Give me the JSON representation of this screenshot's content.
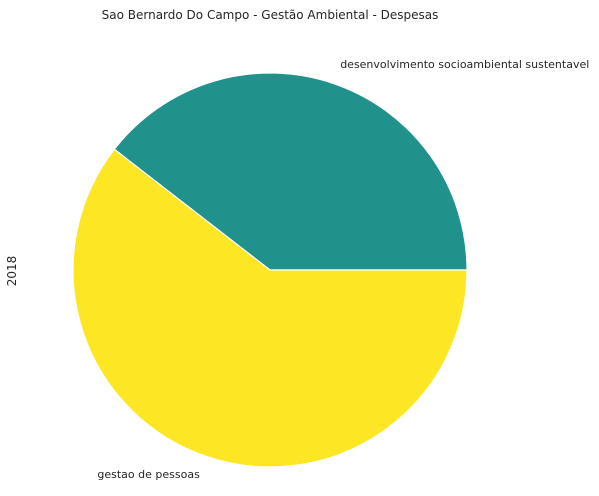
{
  "chart_data": {
    "type": "pie",
    "title": "Sao Bernardo Do Campo - Gestão Ambiental - Despesas",
    "ylabel": "2018",
    "slices": [
      {
        "label": "desenvolvimento socioambiental sustentavel",
        "value": 39.5,
        "color": "#21918c"
      },
      {
        "label": "gestao de pessoas",
        "value": 60.5,
        "color": "#fde725"
      }
    ],
    "start_angle_deg": 0,
    "direction": "counterclockwise",
    "grid": false,
    "legend": "none"
  }
}
